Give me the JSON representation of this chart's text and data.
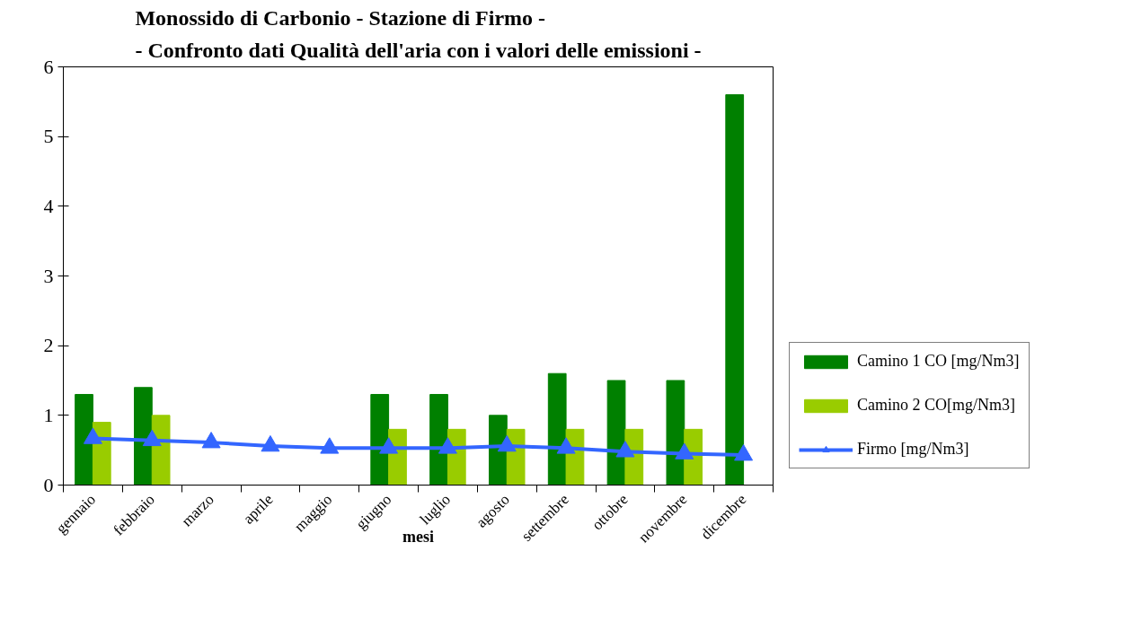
{
  "chart_data": {
    "type": "bar",
    "title": "Monossido di Carbonio - Stazione di Firmo -\n- Confronto dati Qualità dell'aria con i valori delle emissioni -",
    "xlabel": "mesi",
    "categories": [
      "gennaio",
      "febbraio",
      "marzo",
      "aprile",
      "maggio",
      "giugno",
      "luglio",
      "agosto",
      "settembre",
      "ottobre",
      "novembre",
      "dicembre"
    ],
    "series": [
      {
        "name": "Camino 1 CO [mg/Nm3]",
        "color": "#008000",
        "values": [
          1.3,
          1.4,
          null,
          null,
          null,
          1.3,
          1.3,
          1.0,
          1.6,
          1.5,
          1.5,
          5.6
        ]
      },
      {
        "name": "Camino 2 CO[mg/Nm3]",
        "color": "#99cc00",
        "values": [
          0.9,
          1.0,
          null,
          null,
          null,
          0.8,
          0.8,
          0.8,
          0.8,
          0.8,
          0.8,
          null
        ]
      },
      {
        "name": "Firmo [mg/Nm3]",
        "color": "#3366ff",
        "type": "line",
        "marker": "triangle",
        "line_style": "solid",
        "values": [
          0.67,
          0.64,
          0.61,
          0.56,
          0.53,
          0.53,
          0.53,
          0.56,
          0.53,
          0.48,
          0.45,
          0.43
        ]
      }
    ],
    "ylim": [
      0,
      6
    ],
    "yticks": [
      0,
      1,
      2,
      3,
      4,
      5,
      6
    ],
    "grid": false,
    "legend": "bottom right"
  }
}
